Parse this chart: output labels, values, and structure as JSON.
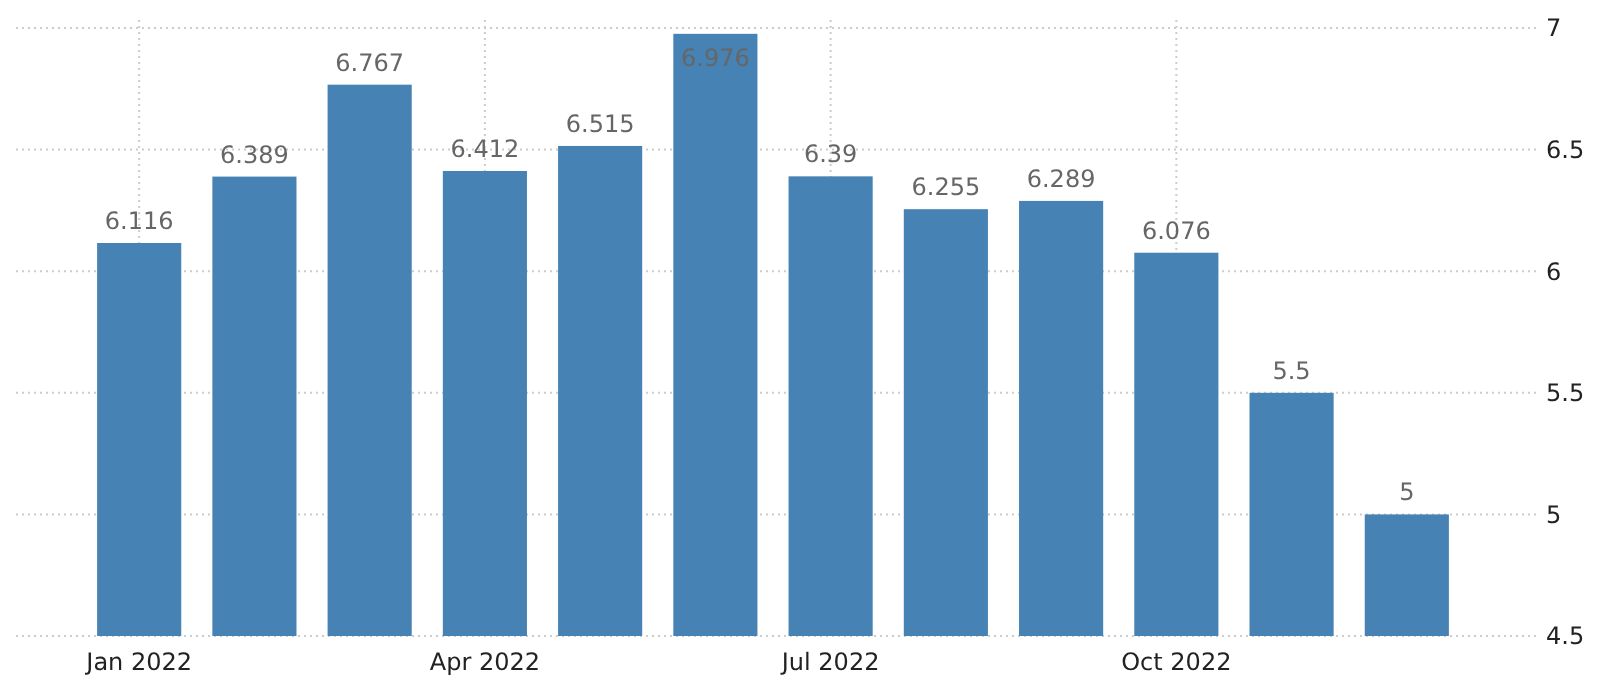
{
  "chart_data": {
    "type": "bar",
    "categories": [
      "Jan 2022",
      null,
      null,
      "Apr 2022",
      null,
      null,
      "Jul 2022",
      null,
      null,
      "Oct 2022",
      null,
      null
    ],
    "values": [
      6.116,
      6.389,
      6.767,
      6.412,
      6.515,
      6.976,
      6.39,
      6.255,
      6.289,
      6.076,
      5.5,
      5
    ],
    "color": "#4682b4",
    "ylim": [
      4.5,
      7
    ],
    "yticks": [
      4.5,
      5,
      5.5,
      6,
      6.5,
      7
    ],
    "grid": true,
    "data_labels": true
  }
}
